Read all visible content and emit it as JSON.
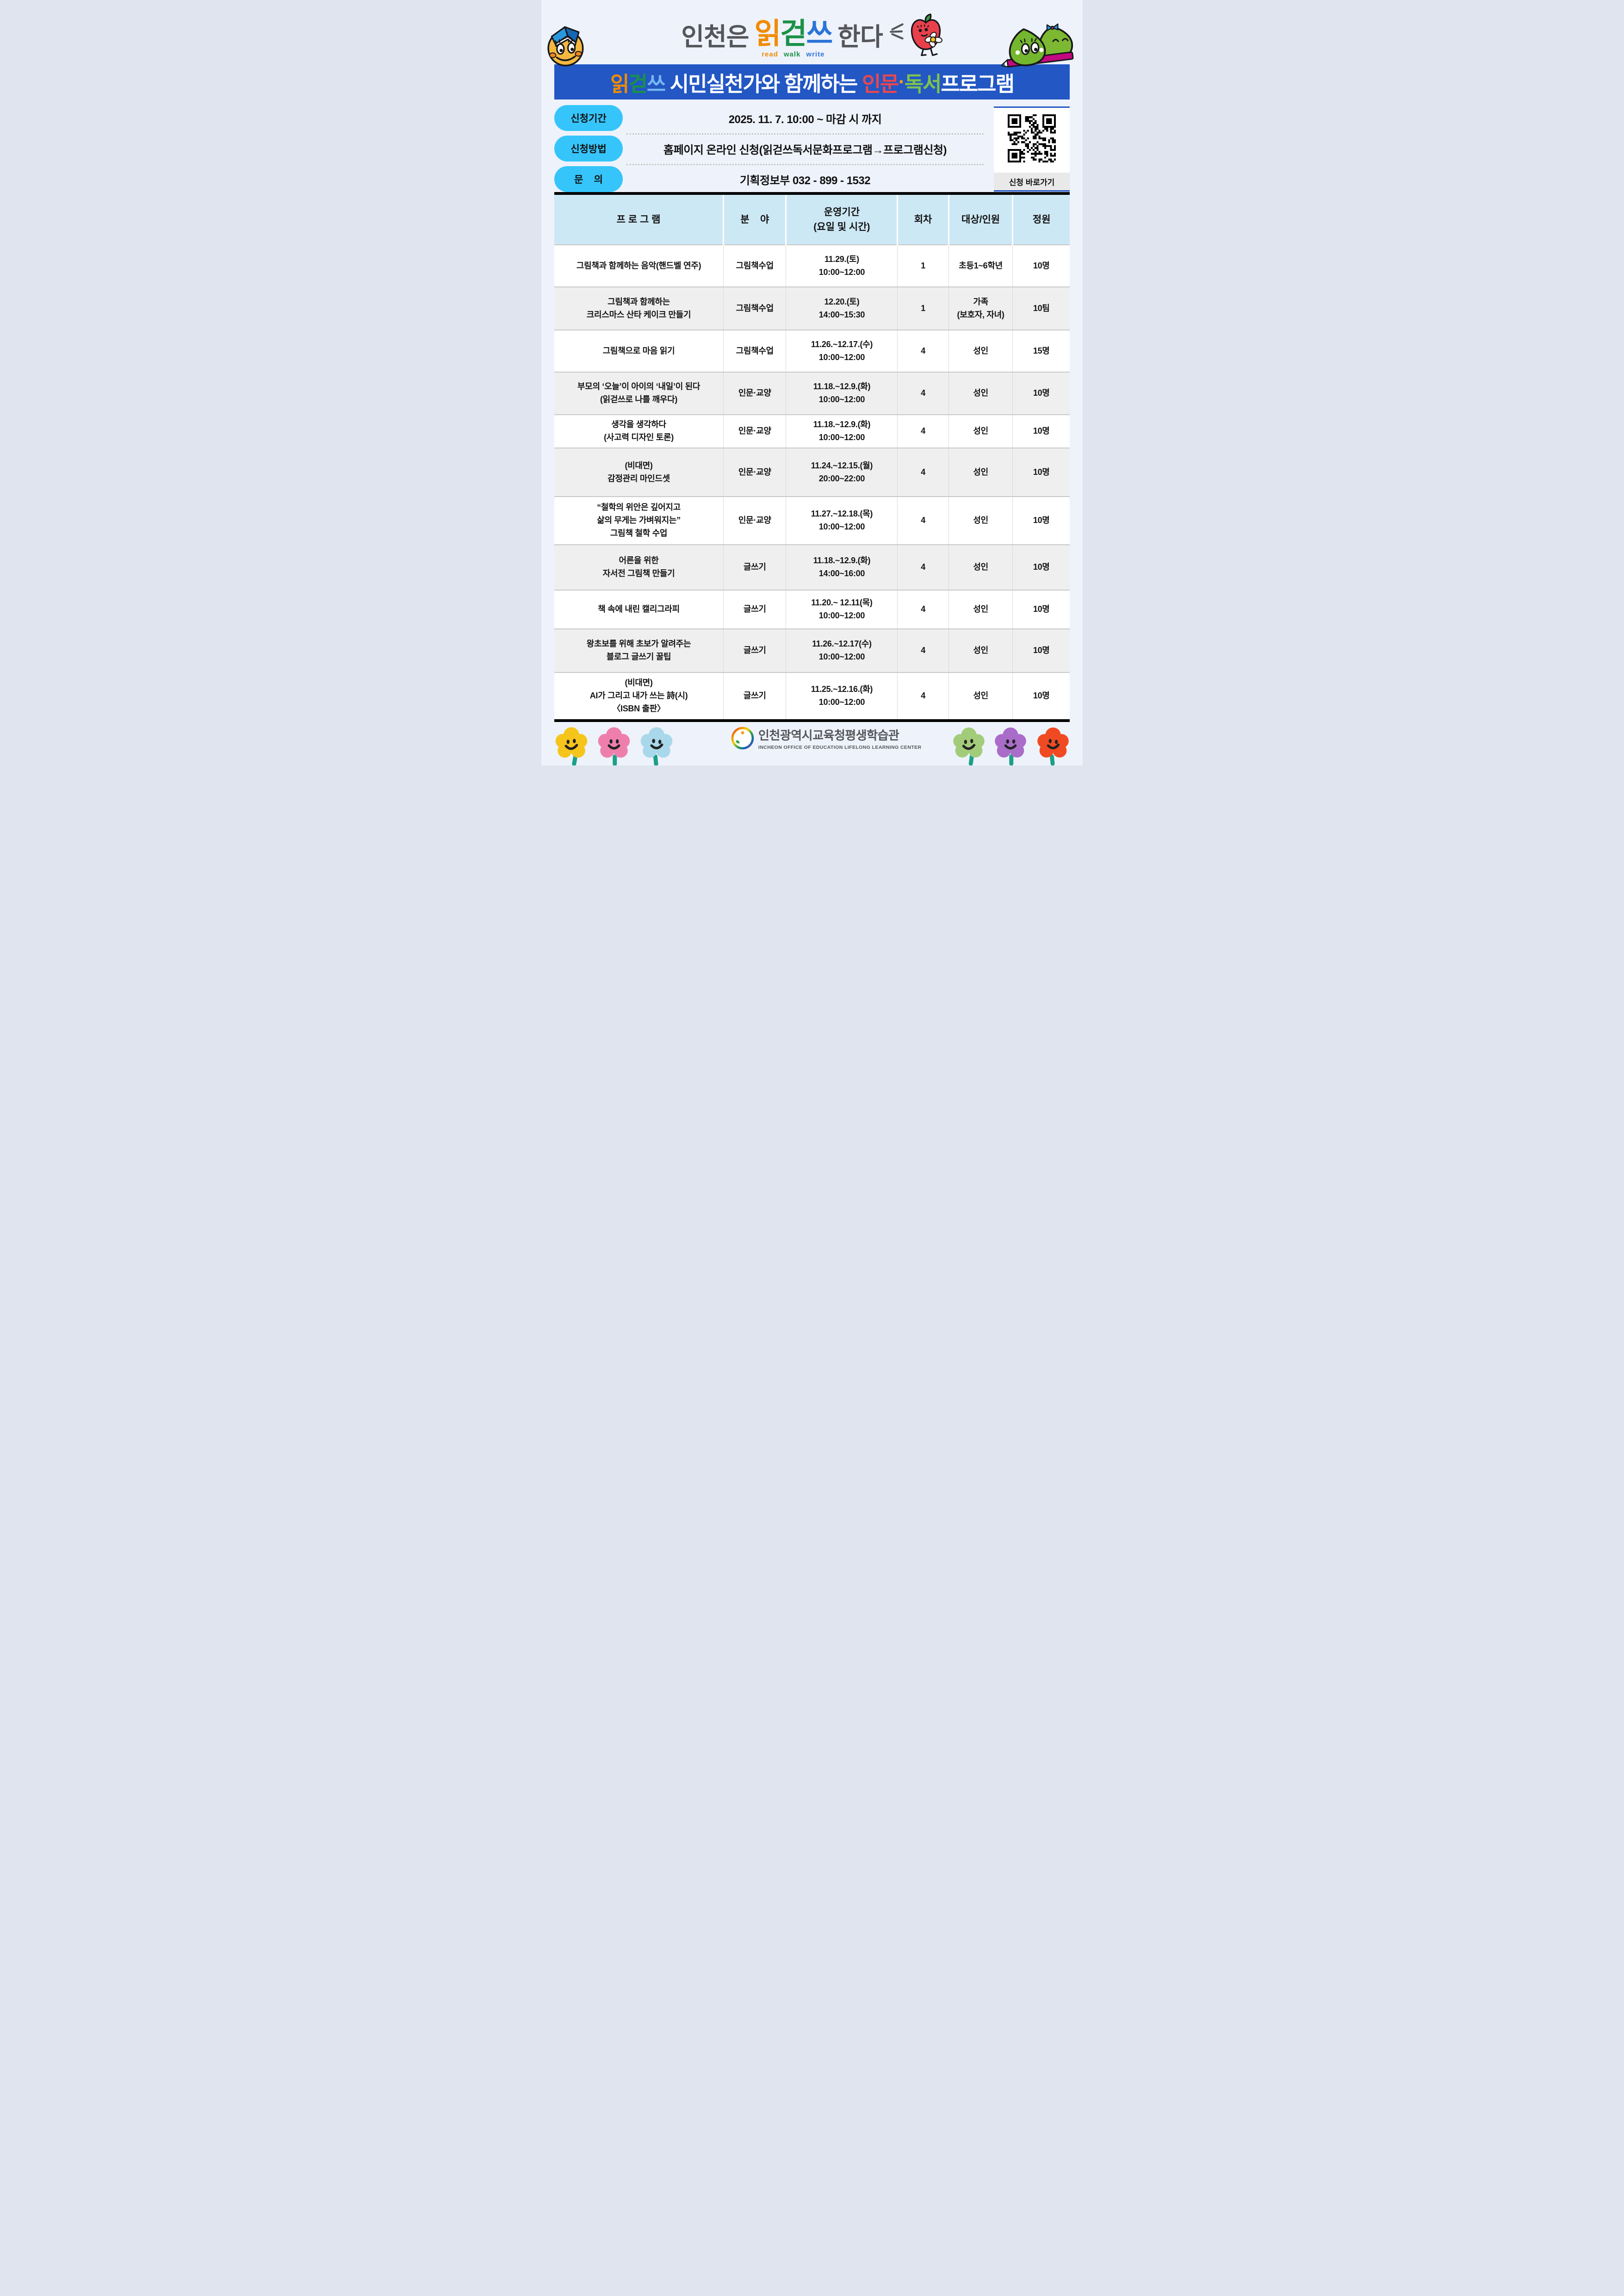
{
  "page": {
    "background": "#eef2fb"
  },
  "logo_header": {
    "title_parts": [
      {
        "text": "인천은",
        "color": "#55565a"
      },
      {
        "text": "읽",
        "color": "#f08c00"
      },
      {
        "text": "걷",
        "color": "#1b9147"
      },
      {
        "text": "쓰",
        "color": "#2b74d8"
      },
      {
        "text": "한다",
        "color": "#55565a"
      }
    ],
    "subtitle_parts": [
      {
        "text": "read",
        "color": "#f08c00"
      },
      {
        "text": "walk",
        "color": "#1b9147"
      },
      {
        "text": "write",
        "color": "#2b74d8"
      }
    ],
    "sparkle_color": "#55565a"
  },
  "mascots": {
    "smiley": {
      "body": "#f4b83f",
      "book_left": "#2a97dc",
      "book_right": "#1566b4",
      "cheek": "#ef8722"
    },
    "apple": {
      "body": "#e9404b",
      "leaf": "#3f9b3f",
      "daisy_center": "#f3c11b"
    },
    "blobs": {
      "body": "#74b62e",
      "body_back": "#7cb832",
      "pencil": "#c4087f",
      "bow": "#1d9ae0",
      "bow_knot": "#d8256f"
    }
  },
  "banner": {
    "bg": "#2257c4",
    "title_parts": [
      {
        "text": "읽",
        "color": "#f08c00"
      },
      {
        "text": "걷",
        "color": "#1b9147"
      },
      {
        "text": "쓰",
        "color": "#7ab8f5"
      },
      {
        "text": " 시민실천가와 함께하는 ",
        "color": "#ffffff"
      },
      {
        "text": "인문",
        "color": "#e8474f"
      },
      {
        "text": "·",
        "color": "#f0971c"
      },
      {
        "text": "독서",
        "color": "#7ec34c"
      },
      {
        "text": "프로그램",
        "color": "#ffffff"
      }
    ]
  },
  "info": {
    "pill_bg": "#35c5fb",
    "rows": [
      {
        "label": "신청기간",
        "value": "2025. 11. 7. 10:00 ~ 마감 시 까지"
      },
      {
        "label": "신청방법",
        "value": "홈페이지 온라인 신청(읽걷쓰독서문화프로그램→프로그램신청)"
      },
      {
        "label": "문    의",
        "value": "기획정보부 032 - 899 - 1532"
      }
    ],
    "qr_label": "신청 바로가기"
  },
  "table": {
    "header_bg": "#cde8f5",
    "columns": [
      "프 로 그 램",
      "분    야",
      "운영기간\n(요일 및 시간)",
      "회차",
      "대상/인원",
      "정원"
    ],
    "rows": [
      {
        "program": "그림책과 함께하는 음악(핸드벨 연주)",
        "field": "그림책수업",
        "period": "11.29.(토)\n10:00~12:00",
        "sessions": "1",
        "target": "초등1~6학년",
        "capacity": "10명"
      },
      {
        "program": "그림책과 함께하는\n크리스마스 산타 케이크 만들기",
        "field": "그림책수업",
        "period": "12.20.(토)\n14:00~15:30",
        "sessions": "1",
        "target": "가족\n(보호자, 자녀)",
        "capacity": "10팀"
      },
      {
        "program": "그림책으로 마음 읽기",
        "field": "그림책수업",
        "period": "11.26.~12.17.(수)\n10:00~12:00",
        "sessions": "4",
        "target": "성인",
        "capacity": "15명"
      },
      {
        "program": "부모의 ‘오늘’이 아이의 ‘내일’이 된다\n(읽걷쓰로 나를 깨우다)",
        "field": "인문·교양",
        "period": "11.18.~12.9.(화)\n10:00~12:00",
        "sessions": "4",
        "target": "성인",
        "capacity": "10명"
      },
      {
        "program": "생각을 생각하다\n(사고력 디자인 토론)",
        "field": "인문·교양",
        "period": "11.18.~12.9.(화)\n10:00~12:00",
        "sessions": "4",
        "target": "성인",
        "capacity": "10명"
      },
      {
        "program": "(비대면)\n감정관리 마인드셋",
        "field": "인문·교양",
        "period": "11.24.~12.15.(월)\n20:00~22:00",
        "sessions": "4",
        "target": "성인",
        "capacity": "10명"
      },
      {
        "program": "“철학의 위안은 깊어지고\n삶의 무게는 가벼워지는”\n그림책 철학 수업",
        "field": "인문·교양",
        "period": "11.27.~12.18.(목)\n10:00~12:00",
        "sessions": "4",
        "target": "성인",
        "capacity": "10명"
      },
      {
        "program": "어른을 위한\n자서전 그림책 만들기",
        "field": "글쓰기",
        "period": "11.18.~12.9.(화)\n14:00~16:00",
        "sessions": "4",
        "target": "성인",
        "capacity": "10명"
      },
      {
        "program": "책 속에 내린 캘리그라피",
        "field": "글쓰기",
        "period": "11.20.~ 12.11(목)\n10:00~12:00",
        "sessions": "4",
        "target": "성인",
        "capacity": "10명"
      },
      {
        "program": "왕초보를 위해 초보가 알려주는\n블로그 글쓰기 꿀팁",
        "field": "글쓰기",
        "period": "11.26.~12.17(수)\n10:00~12:00",
        "sessions": "4",
        "target": "성인",
        "capacity": "10명"
      },
      {
        "program": "(비대면)\nAI가 그리고 내가 쓰는 詩(시)\n〈ISBN 출판〉",
        "field": "글쓰기",
        "period": "11.25.~12.16.(화)\n10:00~12:00",
        "sessions": "4",
        "target": "성인",
        "capacity": "10명"
      }
    ]
  },
  "footer": {
    "org_name_ko": "인천광역시교육청평생학습관",
    "org_name_en": "INCHEON OFFICE OF EDUCATION LIFELONG LEARNING CENTER",
    "stem_color": "#1ba088",
    "flowers": [
      {
        "color": "#f6c51b"
      },
      {
        "color": "#ee7fad"
      },
      {
        "color": "#a9d8ea"
      },
      {
        "color": "#a3cc7a"
      },
      {
        "color": "#a96cc8"
      },
      {
        "color": "#f04a23"
      }
    ]
  }
}
